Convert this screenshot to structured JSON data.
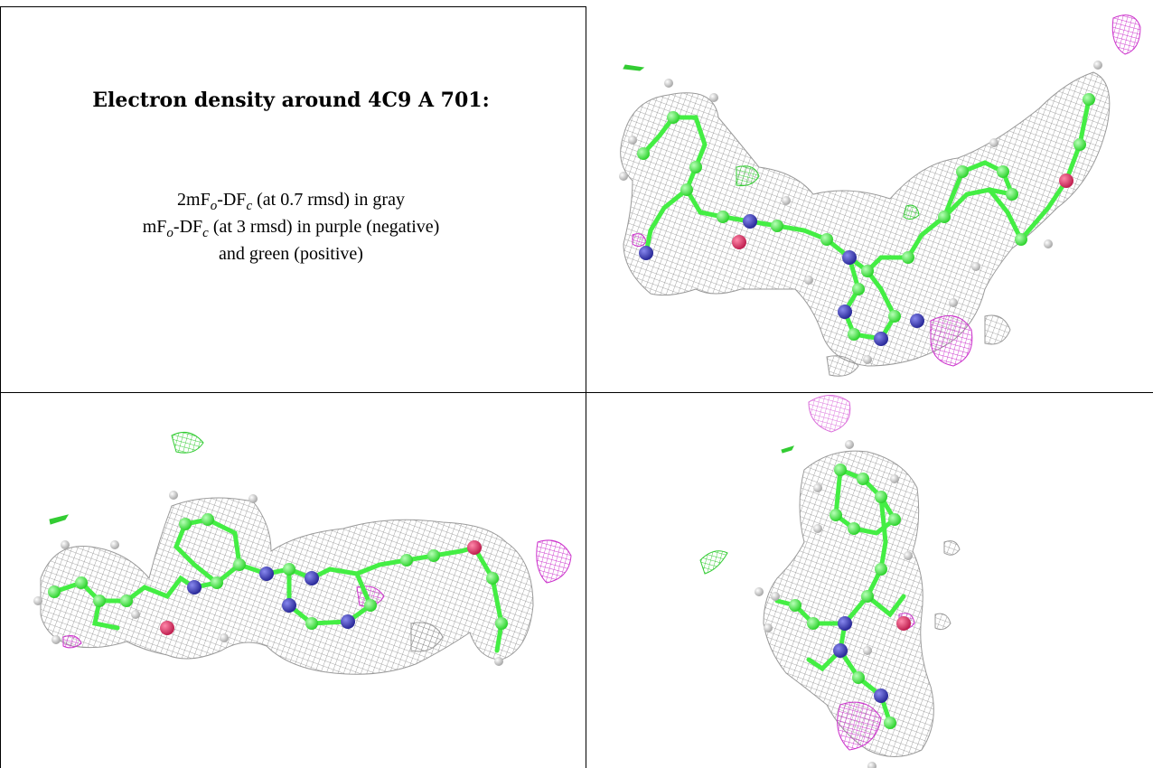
{
  "caption": {
    "title": "Electron density around 4C9 A 701:",
    "line1_prefix": "2mF",
    "line1_sub1": "o",
    "line1_mid": "-DF",
    "line1_sub2": "c",
    "line1_suffix": " (at 0.7 rmsd) in gray",
    "line2_prefix": "mF",
    "line2_sub1": "o",
    "line2_mid": "-DF",
    "line2_sub2": "c",
    "line2_suffix": " (at 3 rmsd) in purple (negative)",
    "line3": "and green (positive)"
  },
  "colors": {
    "mesh_gray": "#8a8a8a",
    "mesh_negative": "#cc33cc",
    "mesh_positive": "#33cc33",
    "carbon": "#44ee44",
    "nitrogen": "#3a3aaa",
    "oxygen": "#d03060",
    "hydrogen": "#dddddd"
  }
}
